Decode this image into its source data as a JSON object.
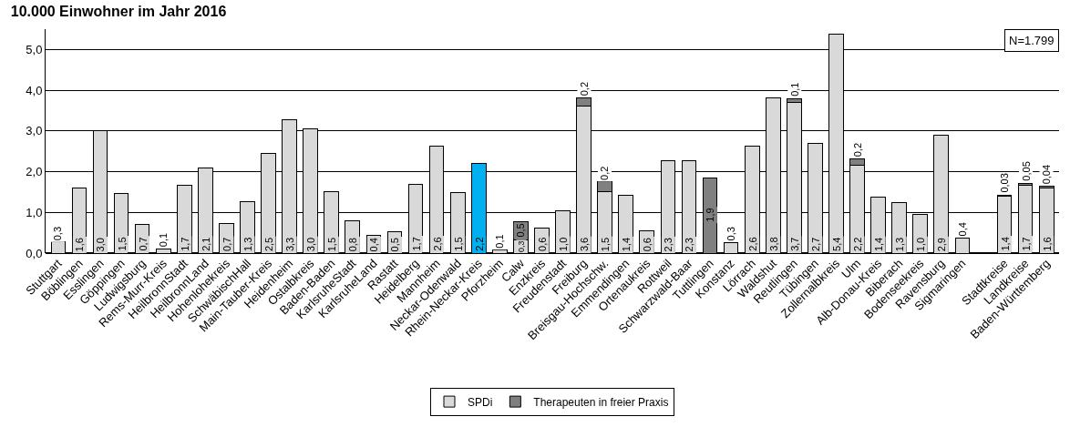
{
  "chart_data": {
    "type": "bar",
    "title": "10.000 Einwohner im Jahr 2016",
    "stacked": true,
    "categories": [
      "Stuttgart",
      "Böblingen",
      "Esslingen",
      "Göppingen",
      "Ludwigsburg",
      "Rems-Murr-Kreis",
      "HeilbronnStadt",
      "HeilbronnLand",
      "Hohenlohekreis",
      "SchwäbischHall",
      "Main-Tauber-Kreis",
      "Heidenheim",
      "Ostalbkreis",
      "Baden-Baden",
      "KarlsruheStadt",
      "KarlsruheLand",
      "Rastatt",
      "Heidelberg",
      "Mannheim",
      "Neckar-Odenwald",
      "Rhein-Neckar-Kreis",
      "Pforzheim",
      "Calw",
      "Enzkreis",
      "Freudenstadt",
      "Freiburg",
      "Breisgau-Hochschw.",
      "Emmendingen",
      "Ortenaukreis",
      "Rottweil",
      "Schwarzwald-Baar",
      "Tuttlingen",
      "Konstanz",
      "Lörrach",
      "Waldshut",
      "Reutlingen",
      "Tübingen",
      "Zollernalbkreis",
      "Ulm",
      "Alb-Donau-Kreis",
      "Biberach",
      "Bodenseekreis",
      "Ravensburg",
      "Sigmaringen",
      null,
      "Stadtkreise",
      "Landkreise",
      "Baden-Württemberg"
    ],
    "series": [
      {
        "name": "SPDi",
        "colors": [
          "#d9d9d9",
          "#d9d9d9",
          "#d9d9d9",
          "#d9d9d9",
          "#d9d9d9",
          "#d9d9d9",
          "#d9d9d9",
          "#d9d9d9",
          "#d9d9d9",
          "#d9d9d9",
          "#d9d9d9",
          "#d9d9d9",
          "#d9d9d9",
          "#d9d9d9",
          "#d9d9d9",
          "#d9d9d9",
          "#d9d9d9",
          "#d9d9d9",
          "#d9d9d9",
          "#d9d9d9",
          "#00b0f0",
          "#d9d9d9",
          "#d9d9d9",
          "#d9d9d9",
          "#d9d9d9",
          "#d9d9d9",
          "#d9d9d9",
          "#d9d9d9",
          "#d9d9d9",
          "#d9d9d9",
          "#d9d9d9",
          "#d9d9d9",
          "#d9d9d9",
          "#d9d9d9",
          "#d9d9d9",
          "#d9d9d9",
          "#d9d9d9",
          "#d9d9d9",
          "#d9d9d9",
          "#d9d9d9",
          "#d9d9d9",
          "#d9d9d9",
          "#d9d9d9",
          "#d9d9d9",
          "#d9d9d9",
          "#d9d9d9",
          "#d9d9d9",
          "#d9d9d9"
        ],
        "values": [
          0.27,
          1.6,
          3.0,
          1.47,
          0.7,
          0.1,
          1.67,
          2.1,
          0.73,
          1.27,
          2.45,
          3.27,
          3.05,
          1.5,
          0.8,
          0.43,
          0.53,
          1.68,
          2.63,
          1.48,
          2.2,
          0.07,
          0.33,
          0.62,
          1.03,
          3.62,
          1.5,
          1.43,
          0.55,
          2.28,
          2.28,
          null,
          0.25,
          2.63,
          3.82,
          3.7,
          2.7,
          5.37,
          2.15,
          1.38,
          1.25,
          0.95,
          2.9,
          0.38,
          null,
          1.4,
          1.67,
          1.6
        ],
        "value_labels": [
          "0,3",
          "1,6",
          "3,0",
          "1,5",
          "0,7",
          "0,1",
          "1,7",
          "2,1",
          "0,7",
          "1,3",
          "2,5",
          "3,3",
          "3,0",
          "1,5",
          "0,8",
          "0,4",
          "0,5",
          "1,7",
          "2,6",
          "1,5",
          "2,2",
          "0,1",
          "0,3",
          "0,6",
          "1,0",
          "3,6",
          "1,5",
          "1,4",
          "0,6",
          "2,3",
          "2,3",
          null,
          "0,3",
          "2,6",
          "3,8",
          "3,7",
          "2,7",
          "5,4",
          "2,2",
          "1,4",
          "1,3",
          "1,0",
          "2,9",
          "0,4",
          null,
          "1,4",
          "1,7",
          "1,6"
        ]
      },
      {
        "name": "Therapeuten in freier Praxis",
        "color": "#808080",
        "values": [
          null,
          null,
          null,
          null,
          null,
          null,
          null,
          null,
          null,
          null,
          null,
          null,
          null,
          null,
          null,
          null,
          null,
          null,
          null,
          null,
          null,
          null,
          0.45,
          null,
          null,
          0.2,
          0.25,
          null,
          null,
          null,
          null,
          1.85,
          null,
          null,
          null,
          0.1,
          null,
          null,
          0.17,
          null,
          null,
          null,
          null,
          null,
          null,
          0.03,
          0.05,
          0.04
        ],
        "value_labels": [
          null,
          null,
          null,
          null,
          null,
          null,
          null,
          null,
          null,
          null,
          null,
          null,
          null,
          null,
          null,
          null,
          null,
          null,
          null,
          null,
          null,
          null,
          "0,5",
          null,
          null,
          "0,2",
          "0,2",
          null,
          null,
          null,
          null,
          "1,9",
          null,
          null,
          null,
          "0,1",
          null,
          null,
          "0,2",
          null,
          null,
          null,
          null,
          null,
          null,
          "0,03",
          "0,05",
          "0,04"
        ]
      }
    ],
    "ylim": [
      0,
      5.5
    ],
    "yticks": [
      {
        "value": 0,
        "label": "0,0"
      },
      {
        "value": 1,
        "label": "1,0"
      },
      {
        "value": 2,
        "label": "2,0"
      },
      {
        "value": 3,
        "label": "3,0"
      },
      {
        "value": 4,
        "label": "4,0"
      },
      {
        "value": 5,
        "label": "5,0"
      }
    ],
    "grid": "y",
    "legend": "bottom",
    "annotations": [
      "N=1.799"
    ]
  }
}
